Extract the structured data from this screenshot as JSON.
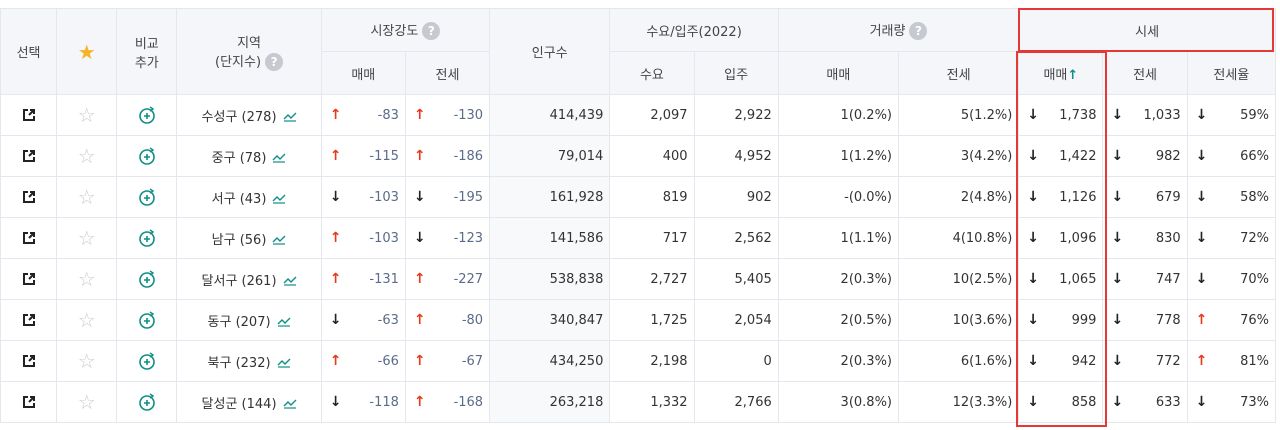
{
  "header": {
    "select": "선택",
    "compare": [
      "비교",
      "추가"
    ],
    "region": [
      "지역",
      "(단지수)"
    ],
    "market_strength": "시장강도",
    "sale": "매매",
    "jeonse": "전세",
    "population": "인구수",
    "supply_group": "수요/입주(2022)",
    "demand": "수요",
    "move_in": "입주",
    "volume": "거래량",
    "price_group": "시세",
    "sale_sort": "매매",
    "sort_arrow": "↑",
    "jeonse_rate": "전세율",
    "help": "?"
  },
  "rows": [
    {
      "region": "수성구 (278)",
      "ms_sale_dir": "up",
      "ms_sale": "-83",
      "ms_jeonse_dir": "up",
      "ms_jeonse": "-130",
      "population": "414,439",
      "demand": "2,097",
      "move_in": "2,922",
      "vol_sale": "1(0.2%)",
      "vol_jeonse": "5(1.2%)",
      "price_sale_dir": "down",
      "price_sale": "1,738",
      "price_jeonse_dir": "down",
      "price_jeonse": "1,033",
      "rate_dir": "down",
      "rate": "59%"
    },
    {
      "region": "중구 (78)",
      "ms_sale_dir": "up",
      "ms_sale": "-115",
      "ms_jeonse_dir": "up",
      "ms_jeonse": "-186",
      "population": "79,014",
      "demand": "400",
      "move_in": "4,952",
      "vol_sale": "1(1.2%)",
      "vol_jeonse": "3(4.2%)",
      "price_sale_dir": "down",
      "price_sale": "1,422",
      "price_jeonse_dir": "down",
      "price_jeonse": "982",
      "rate_dir": "down",
      "rate": "66%"
    },
    {
      "region": "서구 (43)",
      "ms_sale_dir": "down",
      "ms_sale": "-103",
      "ms_jeonse_dir": "down",
      "ms_jeonse": "-195",
      "population": "161,928",
      "demand": "819",
      "move_in": "902",
      "vol_sale": "-(0.0%)",
      "vol_jeonse": "2(4.8%)",
      "price_sale_dir": "down",
      "price_sale": "1,126",
      "price_jeonse_dir": "down",
      "price_jeonse": "679",
      "rate_dir": "down",
      "rate": "58%"
    },
    {
      "region": "남구 (56)",
      "ms_sale_dir": "up",
      "ms_sale": "-103",
      "ms_jeonse_dir": "down",
      "ms_jeonse": "-123",
      "population": "141,586",
      "demand": "717",
      "move_in": "2,562",
      "vol_sale": "1(1.1%)",
      "vol_jeonse": "4(10.8%)",
      "price_sale_dir": "down",
      "price_sale": "1,096",
      "price_jeonse_dir": "down",
      "price_jeonse": "830",
      "rate_dir": "down",
      "rate": "72%"
    },
    {
      "region": "달서구 (261)",
      "ms_sale_dir": "up",
      "ms_sale": "-131",
      "ms_jeonse_dir": "up",
      "ms_jeonse": "-227",
      "population": "538,838",
      "demand": "2,727",
      "move_in": "5,405",
      "vol_sale": "2(0.3%)",
      "vol_jeonse": "10(2.5%)",
      "price_sale_dir": "down",
      "price_sale": "1,065",
      "price_jeonse_dir": "down",
      "price_jeonse": "747",
      "rate_dir": "down",
      "rate": "70%"
    },
    {
      "region": "동구 (207)",
      "ms_sale_dir": "down",
      "ms_sale": "-63",
      "ms_jeonse_dir": "up",
      "ms_jeonse": "-80",
      "population": "340,847",
      "demand": "1,725",
      "move_in": "2,054",
      "vol_sale": "2(0.5%)",
      "vol_jeonse": "10(3.6%)",
      "price_sale_dir": "down",
      "price_sale": "999",
      "price_jeonse_dir": "down",
      "price_jeonse": "778",
      "rate_dir": "up",
      "rate": "76%"
    },
    {
      "region": "북구 (232)",
      "ms_sale_dir": "up",
      "ms_sale": "-66",
      "ms_jeonse_dir": "up",
      "ms_jeonse": "-67",
      "population": "434,250",
      "demand": "2,198",
      "move_in": "0",
      "vol_sale": "2(0.3%)",
      "vol_jeonse": "6(1.6%)",
      "price_sale_dir": "down",
      "price_sale": "942",
      "price_jeonse_dir": "down",
      "price_jeonse": "772",
      "rate_dir": "up",
      "rate": "81%"
    },
    {
      "region": "달성군 (144)",
      "ms_sale_dir": "down",
      "ms_sale": "-118",
      "ms_jeonse_dir": "up",
      "ms_jeonse": "-168",
      "population": "263,218",
      "demand": "1,332",
      "move_in": "2,766",
      "vol_sale": "3(0.8%)",
      "vol_jeonse": "12(3.3%)",
      "price_sale_dir": "down",
      "price_sale": "858",
      "price_jeonse_dir": "down",
      "price_jeonse": "633",
      "rate_dir": "down",
      "rate": "73%"
    }
  ],
  "colors": {
    "up": "#e53b1b",
    "down": "#222222",
    "accent": "#0f8f85",
    "highlight": "#e53935"
  },
  "icons": {
    "star_head": "star-filled-icon",
    "row_star": "star-outline-icon",
    "open": "external-link-icon",
    "compare": "compare-add-icon",
    "trend": "trend-chart-icon"
  }
}
